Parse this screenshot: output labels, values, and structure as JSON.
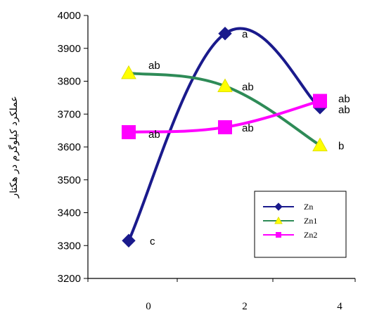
{
  "chart_data": {
    "type": "line",
    "title": "",
    "xlabel": "",
    "ylabel": "عملکرد کیلوگرم در هکتار",
    "x": [
      "0",
      "2",
      "4"
    ],
    "ylim": [
      3200,
      4000
    ],
    "yticks": [
      3200,
      3300,
      3400,
      3500,
      3600,
      3700,
      3800,
      3900,
      4000
    ],
    "grid": false,
    "legend_position": "bottom-right",
    "series": [
      {
        "name": "Zn",
        "values": [
          3315,
          3945,
          3720
        ],
        "labels": [
          "c",
          "a",
          "ab"
        ],
        "color": "#1a1a8c",
        "marker": "diamond"
      },
      {
        "name": "Zn1",
        "values": [
          3825,
          3785,
          3605
        ],
        "labels": [
          "ab",
          "ab",
          "b"
        ],
        "color": "#2e8b57",
        "marker": "triangle"
      },
      {
        "name": "Zn2",
        "values": [
          3645,
          3660,
          3740
        ],
        "labels": [
          "ab",
          "ab",
          "ab"
        ],
        "color": "#ff00ff",
        "marker": "square"
      }
    ]
  }
}
